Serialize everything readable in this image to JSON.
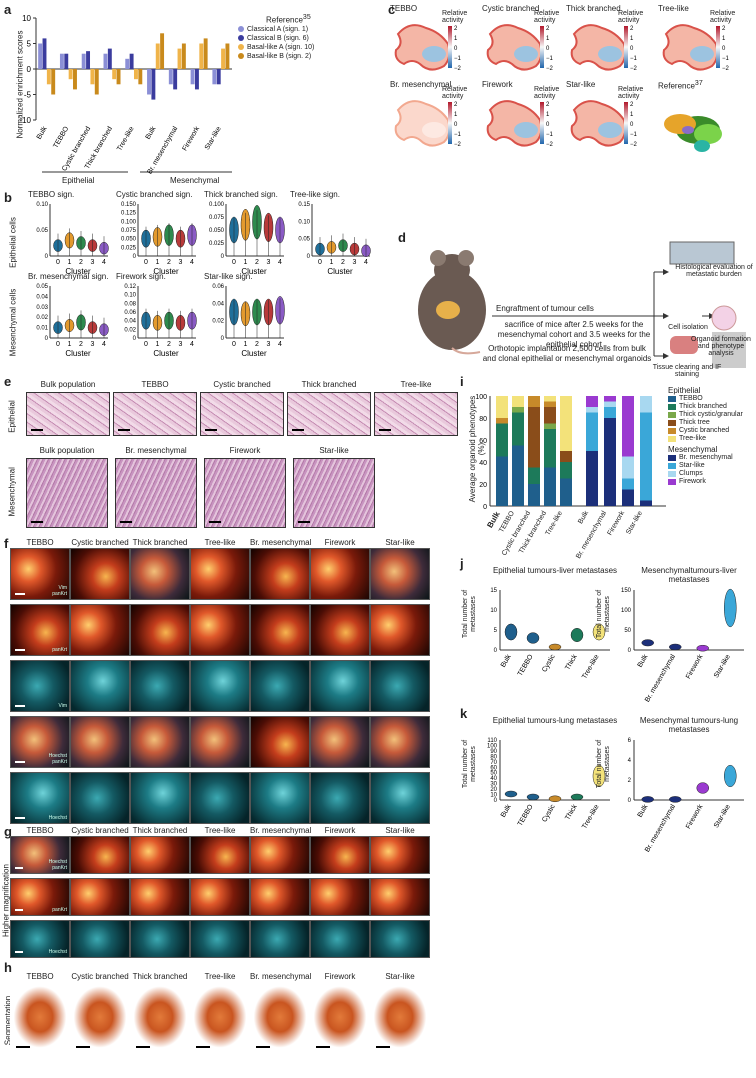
{
  "panels": {
    "a": "a",
    "b": "b",
    "c": "c",
    "d": "d",
    "e": "e",
    "f": "f",
    "g": "g",
    "h": "h",
    "i": "i",
    "j": "j",
    "k": "k"
  },
  "panel_a": {
    "ylabel": "Normalized enrichment scores",
    "legend_title": "Reference",
    "legend_ref": "35",
    "legend": [
      {
        "name": "Classical A (sign. 1)",
        "color": "#8b8fd6"
      },
      {
        "name": "Classical B (sign. 6)",
        "color": "#3b3c9e"
      },
      {
        "name": "Basal-like A (sign. 10)",
        "color": "#f0b44a"
      },
      {
        "name": "Basal-like B (sign. 2)",
        "color": "#c98a1c"
      }
    ],
    "group_epi": "Epithelial",
    "group_mes": "Mesenchymal"
  },
  "chart_data": {
    "type": "bar",
    "categories": [
      "Bulk",
      "TEBBO",
      "Cystic branched",
      "Thick branched",
      "Tree-like",
      "Bulk",
      "Br. mesenchymal",
      "Firework",
      "Star-like"
    ],
    "series": [
      {
        "name": "Classical A (sign. 1)",
        "values": [
          5,
          3,
          3,
          3,
          2,
          -5,
          -3,
          -3,
          -3
        ]
      },
      {
        "name": "Classical B (sign. 6)",
        "values": [
          6,
          3,
          3.5,
          4,
          3,
          -6,
          -4,
          -4,
          -3
        ]
      },
      {
        "name": "Basal-like A (sign. 10)",
        "values": [
          -3,
          -2,
          -3,
          -2,
          -2,
          5,
          4,
          5,
          4
        ]
      },
      {
        "name": "Basal-like B (sign. 2)",
        "values": [
          -5,
          -4,
          -5,
          -3,
          -3,
          7,
          5,
          6,
          5
        ]
      }
    ],
    "ylim": [
      -10,
      10
    ],
    "yticks": [
      "10",
      "5",
      "0",
      "-5",
      "-10"
    ]
  },
  "panel_b": {
    "ylabel_epi": "Epithelial cells",
    "ylabel_mes": "Mesenchymal cells",
    "xlabel": "Cluster",
    "clusters": [
      "0",
      "1",
      "2",
      "3",
      "4"
    ],
    "titles": [
      "TEBBO sign.",
      "Cystic branched sign.",
      "Thick branched sign.",
      "Tree-like sign.",
      "Br. mesenchymal sign.",
      "Firework sign.",
      "Star-like sign."
    ],
    "yticks": [
      [
        "0.10",
        "0.05",
        "0"
      ],
      [
        "0.150",
        "0.125",
        "0.100",
        "0.075",
        "0.050",
        "0.025",
        "0"
      ],
      [
        "0.100",
        "0.075",
        "0.050",
        "0.025",
        "0"
      ],
      [
        "0.15",
        "0.10",
        "0.05",
        "0"
      ],
      [
        "0.05",
        "0.04",
        "0.03",
        "0.02",
        "0.01",
        "0"
      ],
      [
        "0.12",
        "0.10",
        "0.08",
        "0.06",
        "0.04",
        "0.02",
        "0"
      ],
      [
        "0.06",
        "0.04",
        "0.02",
        "0"
      ]
    ],
    "violin_colors": [
      "#1f6f9a",
      "#e39a2e",
      "#2e8a4e",
      "#b83a3a",
      "#8a5bc4"
    ]
  },
  "panel_c": {
    "titles": [
      "TEBBO",
      "Cystic branched",
      "Thick branched",
      "Tree-like",
      "Br. mesenchymal",
      "Firework",
      "Star-like",
      "Reference"
    ],
    "ref_sup": "37",
    "cbar_label": "Relative activity",
    "cbar_ticks": [
      "2",
      "1",
      "0",
      "−1",
      "−2"
    ]
  },
  "panel_d": {
    "engraftment": "Engraftment of tumour cells",
    "sacrifice": "sacrifice of mice after 2.5 weeks for the mesenchymal cohort and 3.5 weeks for the epithelial cohort",
    "implant": "Orthotopic implantation 2,500 cells from bulk and clonal epithelial or mesenchymal organoids",
    "histo": "Histological evaluation of metastatic burden",
    "isolation": "Cell isolation",
    "organoid": "Organoid formation and phenotype analysis",
    "clearing": "Tissue clearing and IF staining"
  },
  "panel_e": {
    "row_epi": "Epithelial",
    "row_mes": "Mesenchymal",
    "epi": [
      "Bulk population",
      "TEBBO",
      "Cystic branched",
      "Thick branched",
      "Tree-like"
    ],
    "mes": [
      "Bulk population",
      "Br. mesenchymal",
      "Firework",
      "Star-like"
    ]
  },
  "panel_f": {
    "cols": [
      "TEBBO",
      "Cystic branched",
      "Thick branched",
      "Tree-like",
      "Br. mesenchymal",
      "Firework",
      "Star-like"
    ],
    "stains": [
      "Vim\npanKrt",
      "panKrt",
      "Vim",
      "Hoechst\npanKrt",
      "Hoechst"
    ]
  },
  "panel_g": {
    "ylabel": "Higher magnification",
    "cols": [
      "TEBBO",
      "Cystic branched",
      "Thick branched",
      "Tree-like",
      "Br. mesenchymal",
      "Firework",
      "Star-like"
    ],
    "stains": [
      "Hoechst\npanKrt",
      "panKrt",
      "Hoechst"
    ]
  },
  "panel_h": {
    "ylabel": "Segmentation",
    "cols": [
      "TEBBO",
      "Cystic branched",
      "Thick branched",
      "Tree-like",
      "Br. mesenchymal",
      "Firework",
      "Star-like"
    ]
  },
  "panel_i": {
    "ylabel": "Average organoid phenotypes (%)",
    "yticks": [
      "100",
      "80",
      "60",
      "40",
      "20",
      "0"
    ],
    "epi_cats": [
      "Bulk",
      "TEBBO",
      "Cystic branched",
      "Thick branched",
      "Tree-like"
    ],
    "mes_cats": [
      "Bulk",
      "Br. mesenchymal",
      "Firework",
      "Star-like"
    ],
    "legend_epi_title": "Epithelial",
    "legend_epi": [
      {
        "name": "TEBBO",
        "color": "#1f5f8c"
      },
      {
        "name": "Thick branched",
        "color": "#1d7a5a"
      },
      {
        "name": "Thick cystic/granular",
        "color": "#7aa84a"
      },
      {
        "name": "Thick tree",
        "color": "#8a4d1a"
      },
      {
        "name": "Cystic branched",
        "color": "#c78a2a"
      },
      {
        "name": "Tree-like",
        "color": "#f3e27a"
      }
    ],
    "legend_mes_title": "Mesenchymal",
    "legend_mes": [
      {
        "name": "Br. mesenchymal",
        "color": "#1c2f7a"
      },
      {
        "name": "Star-like",
        "color": "#3aa7d8"
      },
      {
        "name": "Clumps",
        "color": "#a8d8f0"
      },
      {
        "name": "Firework",
        "color": "#9a3ad0"
      }
    ]
  },
  "panel_j": {
    "title_epi": "Epithelial tumours-liver metastases",
    "title_mes": "Mesenchymaltumours-liver metastases",
    "ylabel": "Total number of metastases",
    "epi_yticks": [
      "15",
      "10",
      "5",
      "0"
    ],
    "mes_yticks": [
      "150",
      "100",
      "50",
      "0"
    ],
    "epi_cats": [
      "Bulk",
      "TEBBO",
      "Cystic",
      "Thick",
      "Tree-like"
    ],
    "mes_cats": [
      "Bulk",
      "Br. mesenchymal",
      "Firework",
      "Star-like"
    ]
  },
  "panel_k": {
    "title_epi": "Epithelial tumours-lung metastases",
    "title_mes": "Mesenchymal tumours-lung metastases",
    "ylabel": "Total number of metastases",
    "epi_yticks": [
      "110",
      "100",
      "90",
      "80",
      "70",
      "60",
      "50",
      "40",
      "30",
      "20",
      "10",
      "0"
    ],
    "mes_yticks": [
      "6",
      "4",
      "2",
      "0"
    ],
    "epi_cats": [
      "Bulk",
      "TEBBO",
      "Cystic",
      "Thick",
      "Tree-like"
    ],
    "mes_cats": [
      "Bulk",
      "Br. mesenchymal",
      "Firework",
      "Star-like"
    ]
  }
}
